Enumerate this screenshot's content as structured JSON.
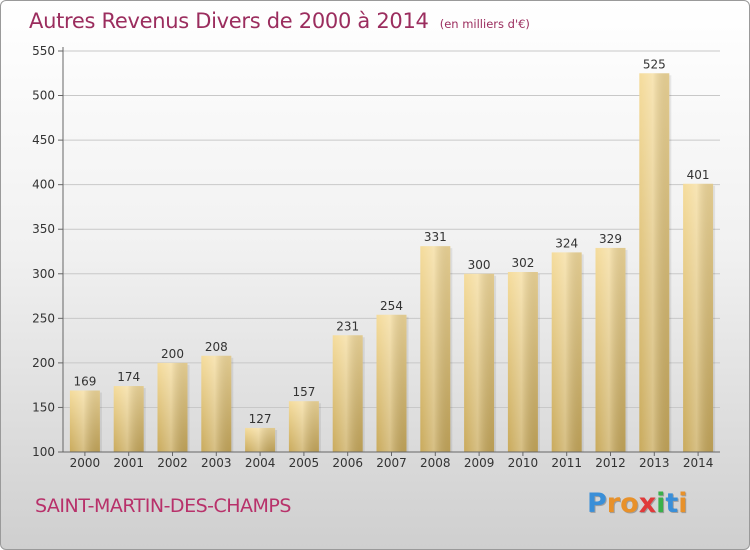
{
  "title": "Autres Revenus Divers de 2000 à 2014",
  "unit": "(en milliers d'€)",
  "commune": "SAINT-MARTIN-DES-CHAMPS",
  "logo": {
    "letters": [
      "P",
      "r",
      "o",
      "x",
      "i",
      "t",
      "i"
    ],
    "colors": [
      "#3a8fd8",
      "#e8912a",
      "#e8912a",
      "#e03a3a",
      "#3ab04a",
      "#3a8fd8",
      "#e8912a"
    ]
  },
  "chart_data": {
    "type": "bar",
    "categories": [
      "2000",
      "2001",
      "2002",
      "2003",
      "2004",
      "2005",
      "2006",
      "2007",
      "2008",
      "2009",
      "2010",
      "2011",
      "2012",
      "2013",
      "2014"
    ],
    "values": [
      169,
      174,
      200,
      208,
      127,
      157,
      231,
      254,
      331,
      300,
      302,
      324,
      329,
      525,
      401
    ],
    "ylim": [
      100,
      550
    ],
    "yticks": [
      100,
      150,
      200,
      250,
      300,
      350,
      400,
      450,
      500,
      550
    ],
    "grid": true,
    "bar_color_top": "#f5dc9c",
    "bar_color_bottom": "#c9aa5c"
  }
}
